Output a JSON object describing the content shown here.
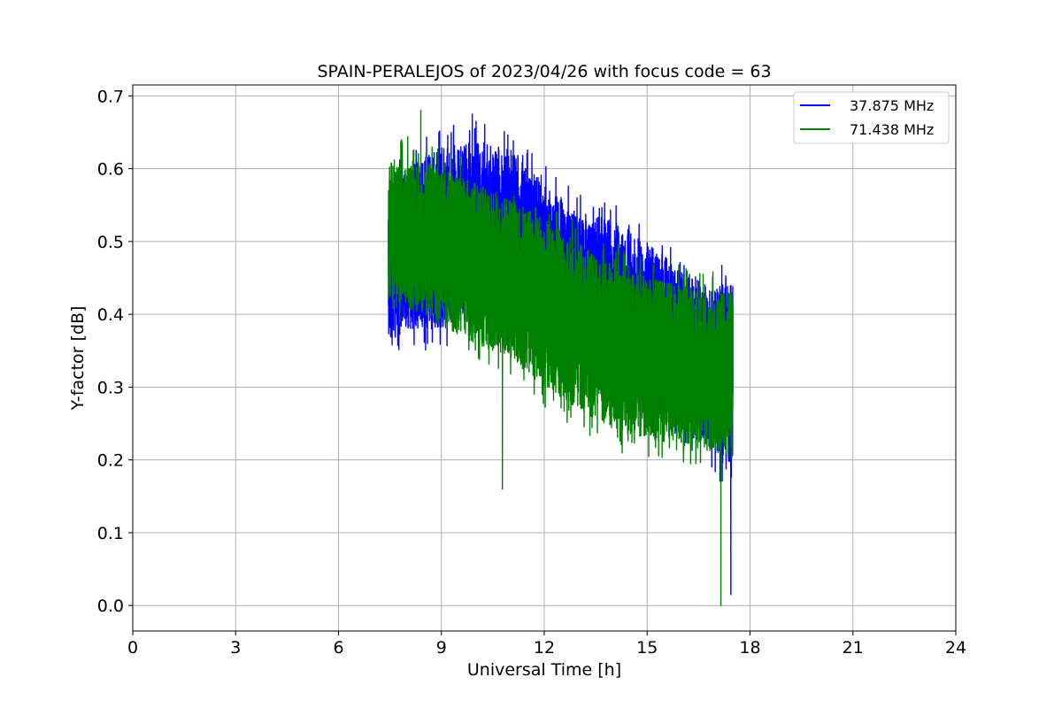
{
  "chart_data": {
    "type": "line",
    "title": "SPAIN-PERALEJOS of 2023/04/26 with focus code = 63",
    "xlabel": "Universal Time [h]",
    "ylabel": "Y-factor [dB]",
    "xlim": [
      0,
      24
    ],
    "ylim": [
      -0.035,
      0.715
    ],
    "xticks": [
      0,
      3,
      6,
      9,
      12,
      15,
      18,
      21,
      24
    ],
    "yticks": [
      0.0,
      0.1,
      0.2,
      0.3,
      0.4,
      0.5,
      0.6,
      0.7
    ],
    "ytick_labels": [
      "0.0",
      "0.1",
      "0.2",
      "0.3",
      "0.4",
      "0.5",
      "0.6",
      "0.7"
    ],
    "grid": true,
    "legend_position": "top-right",
    "series": [
      {
        "name": "37.875 MHz",
        "color": "#0000ff",
        "x_range": [
          7.45,
          17.5
        ],
        "envelope": {
          "x": [
            7.45,
            8,
            9,
            10,
            11,
            12,
            13,
            14,
            15,
            16,
            17,
            17.5
          ],
          "upper": [
            0.57,
            0.6,
            0.63,
            0.64,
            0.63,
            0.58,
            0.54,
            0.53,
            0.5,
            0.46,
            0.44,
            0.44
          ],
          "lower": [
            0.36,
            0.38,
            0.38,
            0.41,
            0.41,
            0.37,
            0.33,
            0.3,
            0.26,
            0.24,
            0.21,
            0.17
          ]
        },
        "extremes": [
          {
            "x": 9.9,
            "y": 0.675
          },
          {
            "x": 17.44,
            "y": 0.015
          }
        ]
      },
      {
        "name": "71.438 MHz",
        "color": "#008000",
        "x_range": [
          7.45,
          17.5
        ],
        "envelope": {
          "x": [
            7.45,
            8,
            9,
            10,
            11,
            12,
            13,
            14,
            15,
            16,
            17,
            17.5
          ],
          "upper": [
            0.61,
            0.62,
            0.6,
            0.58,
            0.56,
            0.53,
            0.5,
            0.47,
            0.45,
            0.44,
            0.43,
            0.43
          ],
          "lower": [
            0.42,
            0.41,
            0.38,
            0.36,
            0.34,
            0.3,
            0.27,
            0.24,
            0.23,
            0.22,
            0.21,
            0.2
          ]
        },
        "extremes": [
          {
            "x": 8.4,
            "y": 0.68
          },
          {
            "x": 10.78,
            "y": 0.16
          },
          {
            "x": 17.15,
            "y": 0.0
          }
        ]
      }
    ]
  }
}
